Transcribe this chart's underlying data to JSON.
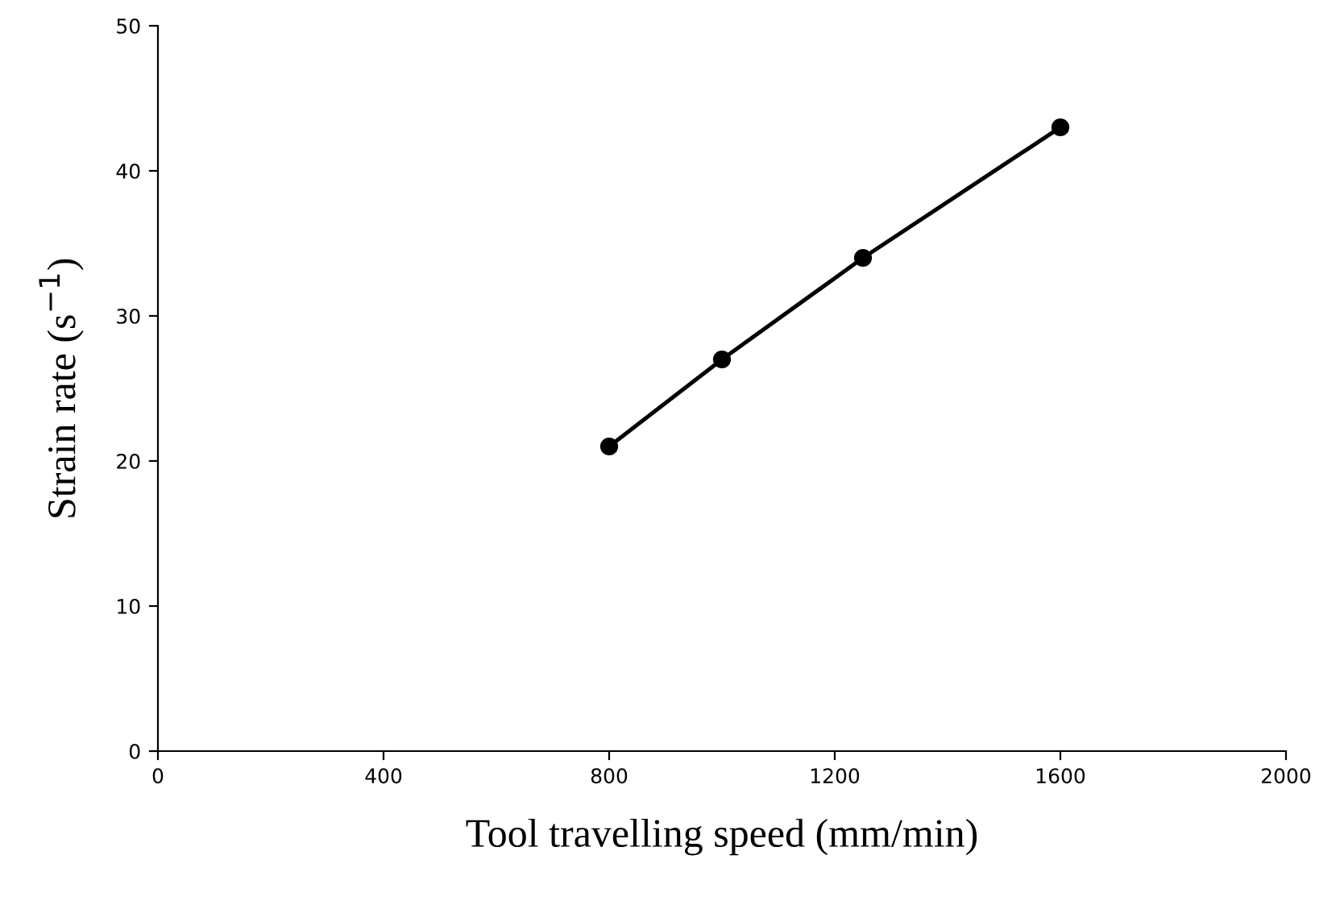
{
  "chart_data": {
    "type": "line",
    "xlabel": "Tool travelling speed (mm/min)",
    "ylabel": "Strain rate (s$^{−1}$)",
    "x": [
      800,
      1000,
      1250,
      1600
    ],
    "series": [
      {
        "color": "#000000",
        "values": [
          21,
          27,
          34,
          43
        ]
      }
    ],
    "xlim": [
      0,
      2000
    ],
    "xticks": [
      0,
      400,
      800,
      1200,
      1600,
      2000
    ],
    "ylim": [
      0,
      50
    ],
    "yticks": [
      0,
      10,
      20,
      30,
      40,
      50
    ],
    "marker": "circle",
    "line_style": "solid",
    "grid": false,
    "legend": false
  }
}
